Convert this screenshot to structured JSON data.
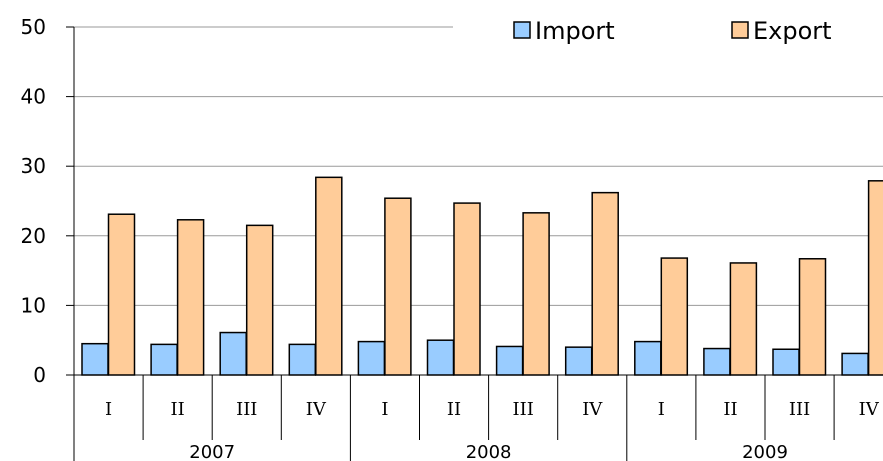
{
  "chart_data": {
    "type": "bar",
    "years": [
      "2007",
      "2008",
      "2009"
    ],
    "quarters": [
      "I",
      "II",
      "III",
      "IV"
    ],
    "categories": [
      "2007 I",
      "2007 II",
      "2007 III",
      "2007 IV",
      "2008 I",
      "2008 II",
      "2008 III",
      "2008 IV",
      "2009 I",
      "2009 II",
      "2009 III",
      "2009 IV"
    ],
    "series": [
      {
        "name": "Import",
        "color": "#99ccff",
        "values": [
          4.5,
          4.4,
          6.1,
          4.4,
          4.8,
          5.0,
          4.1,
          4.0,
          4.8,
          3.8,
          3.7,
          3.1
        ]
      },
      {
        "name": "Export",
        "color": "#ffcc99",
        "values": [
          23.1,
          22.3,
          21.5,
          28.4,
          25.4,
          24.7,
          23.3,
          26.2,
          16.8,
          16.1,
          16.7,
          27.9
        ]
      }
    ],
    "yticks": [
      0,
      10,
      20,
      30,
      40,
      50
    ],
    "ylim": [
      0,
      50
    ],
    "grid": true,
    "legend": "top-right"
  }
}
